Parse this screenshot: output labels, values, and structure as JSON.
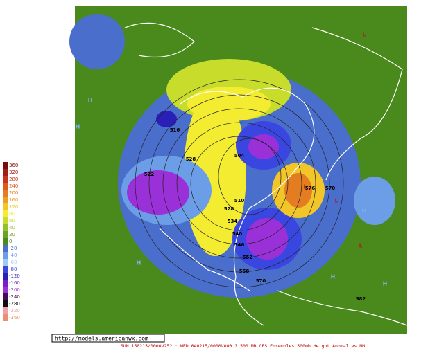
{
  "legend": [
    {
      "label": "360",
      "color": "#7a0a0a"
    },
    {
      "label": "320",
      "color": "#a51c14"
    },
    {
      "label": "280",
      "color": "#c8321a"
    },
    {
      "label": "240",
      "color": "#dc5a1e"
    },
    {
      "label": "200",
      "color": "#e47c22"
    },
    {
      "label": "160",
      "color": "#ec9e24"
    },
    {
      "label": "120",
      "color": "#f2c628"
    },
    {
      "label": "80",
      "color": "#f4ec30"
    },
    {
      "label": "60",
      "color": "#c8dc2c"
    },
    {
      "label": "40",
      "color": "#96c02a"
    },
    {
      "label": "20",
      "color": "#6aa424"
    },
    {
      "label": "0",
      "color": "#4a8a1c"
    },
    {
      "label": "-20",
      "color": "#4a6ecc"
    },
    {
      "label": "-40",
      "color": "#6c9ee8"
    },
    {
      "label": "-60",
      "color": "#9cccf4"
    },
    {
      "label": "-80",
      "color": "#3a46e0"
    },
    {
      "label": "-120",
      "color": "#2a20b8"
    },
    {
      "label": "-160",
      "color": "#7a1ec8"
    },
    {
      "label": "-200",
      "color": "#9a30d8"
    },
    {
      "label": "-240",
      "color": "#4a0a5a"
    },
    {
      "label": "-280",
      "color": "#101010"
    },
    {
      "label": "-320",
      "color": "#f0a0a8"
    },
    {
      "label": "-360",
      "color": "#e89070"
    }
  ],
  "url": "http://models.americanwx.com",
  "caption": "SUN 150215/0000V252 : WED 040215/0000V000 ? 500 MB GFS Ensembles 500mb Height Anomalies NH",
  "map_labels": [
    "516",
    "528",
    "522",
    "504",
    "510",
    "528",
    "534",
    "540",
    "546",
    "552",
    "558",
    "570",
    "576",
    "570",
    "582",
    "H",
    "H",
    "H",
    "H",
    "L",
    "L",
    "L",
    "H",
    "H",
    "L"
  ]
}
